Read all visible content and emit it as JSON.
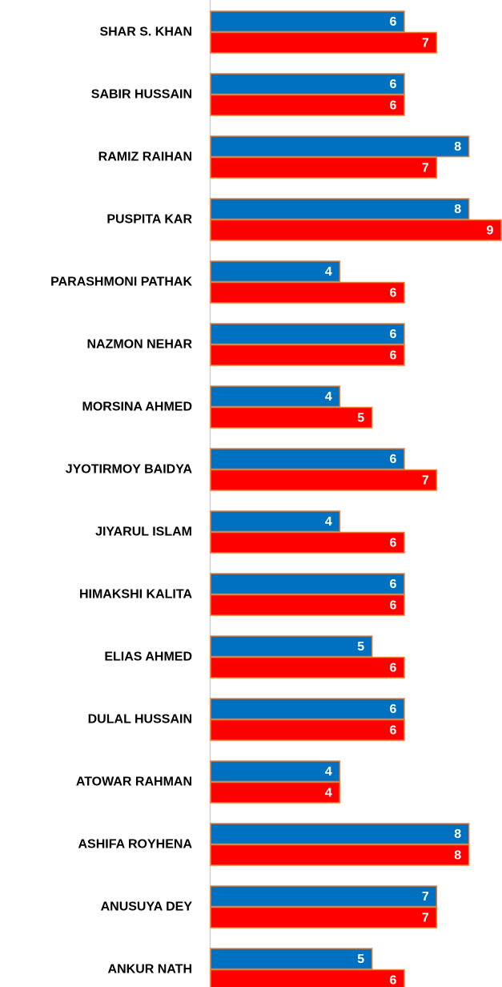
{
  "chart_data": {
    "type": "hbar",
    "categories": [
      "SHAR S. KHAN",
      "SABIR HUSSAIN",
      "RAMIZ RAIHAN",
      "PUSPITA KAR",
      "PARASHMONI PATHAK",
      "NAZMON NEHAR",
      "MORSINA AHMED",
      "JYOTIRMOY BAIDYA",
      "JIYARUL ISLAM",
      "HIMAKSHI KALITA",
      "ELIAS AHMED",
      "DULAL HUSSAIN",
      "ATOWAR RAHMAN",
      "ASHIFA ROYHENA",
      "ANUSUYA DEY",
      "ANKUR NATH"
    ],
    "series": [
      {
        "color": "#0070c0",
        "values": [
          6,
          6,
          8,
          8,
          4,
          6,
          4,
          6,
          4,
          6,
          5,
          6,
          4,
          8,
          7,
          5
        ]
      },
      {
        "color": "#ff0000",
        "values": [
          7,
          6,
          7,
          9,
          6,
          6,
          5,
          7,
          6,
          6,
          6,
          6,
          4,
          8,
          7,
          6
        ]
      }
    ],
    "bar_edge_color": "#ed7d31",
    "xlim": [
      0,
      9
    ]
  }
}
